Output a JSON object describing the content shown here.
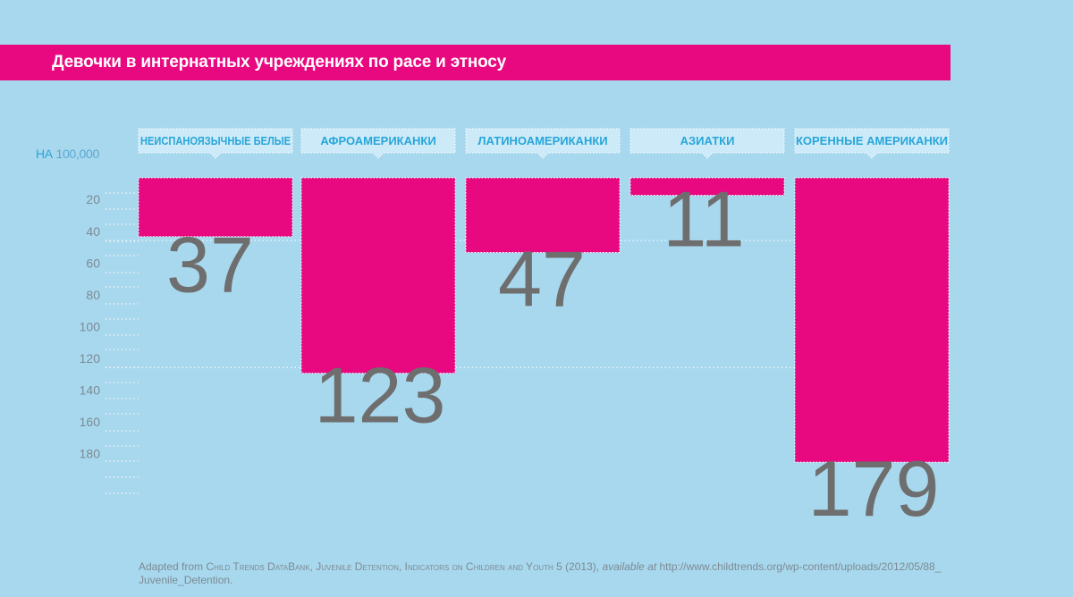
{
  "title": "Девочки в интернатных учреждениях по расе и этносу",
  "unit": {
    "prefix": "НА",
    "value": "100,000"
  },
  "chart_data": {
    "type": "bar",
    "orientation": "vertical-downward",
    "categories": [
      "НЕИСПАНОЯЗЫЧНЫЕ БЕЛЫЕ",
      "АФРОАМЕРИКАНКИ",
      "ЛАТИНОАМЕРИКАНКИ",
      "АЗИАТКИ",
      "КОРЕННЫЕ АМЕРИКАНКИ"
    ],
    "values": [
      37,
      123,
      47,
      11,
      179
    ],
    "value_labels": [
      "37",
      "123",
      "47",
      "11",
      "179"
    ],
    "yticks": [
      20,
      40,
      60,
      80,
      100,
      120,
      140,
      160,
      180
    ],
    "ylim": [
      0,
      200
    ],
    "grid": true
  },
  "source": {
    "lead": "Adapted from ",
    "org": "Child Trends DataBank, Juvenile Detention, Indicators on Children and Youth",
    "year": " 5 (2013), ",
    "avail": "available at",
    "url": " http://www.childtrends.org/wp-content/uploads/2012/05/88_",
    "url2": "Juvenile_Detention."
  },
  "colors": {
    "background": "#a8d8ee",
    "accent": "#e8087f",
    "label_box": "#cdeaf8",
    "category_text": "#27a6d9",
    "value_text": "#6e6e6e"
  }
}
